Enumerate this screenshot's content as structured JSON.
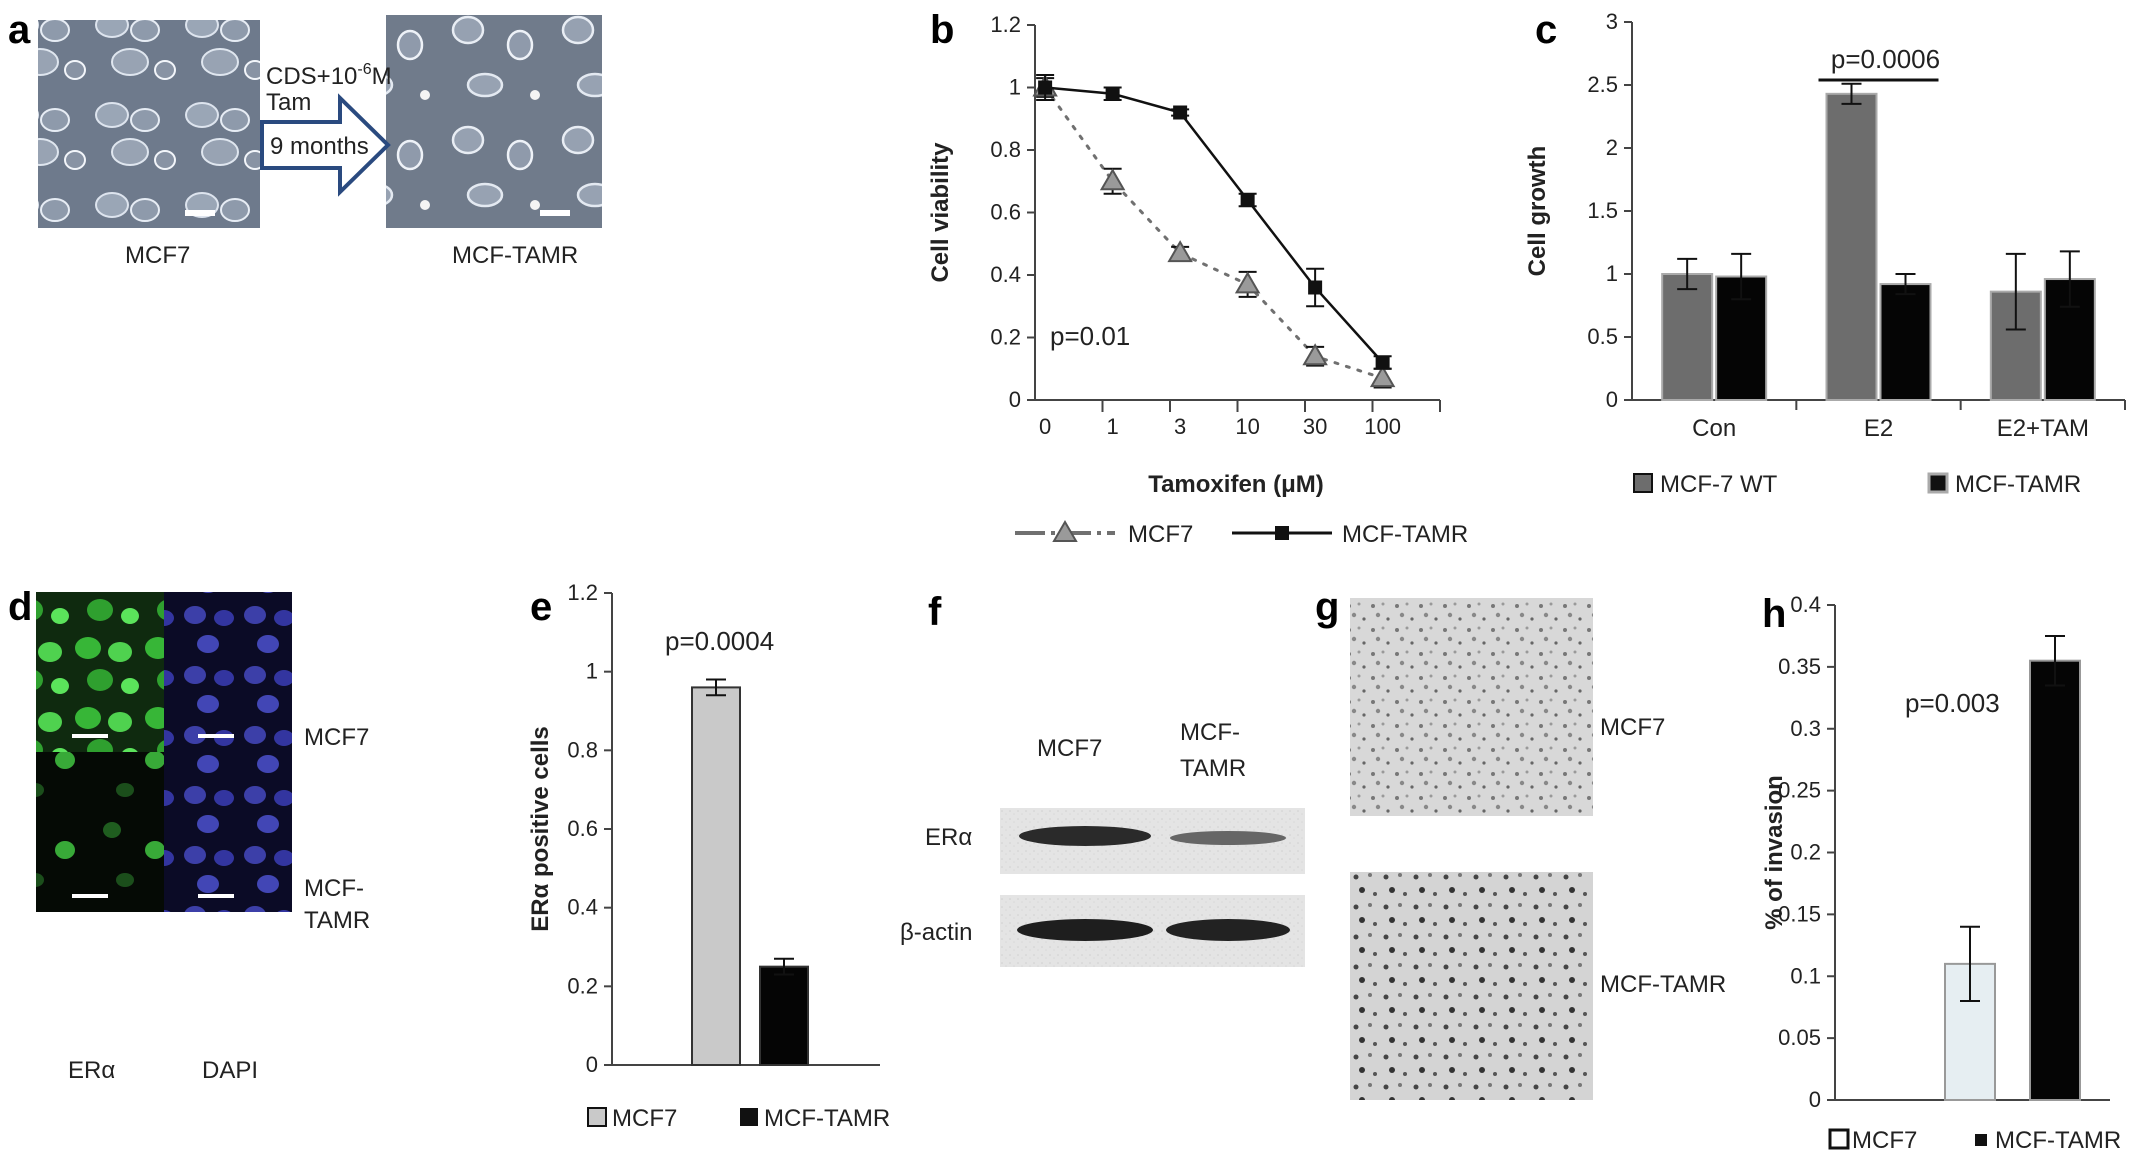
{
  "panels": {
    "a": {
      "letter": "a",
      "left_caption": "MCF7",
      "right_caption": "MCF-TAMR",
      "arrow_line1": "CDS+10",
      "arrow_sup": "-6",
      "arrow_line1_end": "M",
      "arrow_line2": "Tam",
      "arrow_line3": "9 months"
    },
    "b": {
      "letter": "b"
    },
    "c": {
      "letter": "c"
    },
    "d": {
      "letter": "d",
      "row_labels": [
        "MCF7",
        "MCF-",
        "TAMR"
      ],
      "col_labels": [
        "ERα",
        "DAPI"
      ]
    },
    "e": {
      "letter": "e"
    },
    "f": {
      "letter": "f",
      "lane_labels": [
        "MCF7",
        "MCF-",
        "TAMR"
      ],
      "row_labels": [
        "ERα",
        "β-actin"
      ]
    },
    "g": {
      "letter": "g",
      "labels": [
        "MCF7",
        "MCF-TAMR"
      ]
    },
    "h": {
      "letter": "h"
    }
  },
  "colors": {
    "mcf7_line": "#707070",
    "tamr_line": "#111111",
    "wt_bar": "#6d6d6d",
    "tamr_bar_c": "#050505",
    "e_mcf7_bar": "#c9c9c9",
    "e_tamr_bar": "#050505",
    "h_mcf7_bar": "#e6eef2",
    "h_tamr_bar": "#050505",
    "arrow_blue": "#2a4a7f"
  },
  "chart_data": [
    {
      "id": "b",
      "type": "line",
      "x_categories": [
        "0",
        "1",
        "3",
        "10",
        "30",
        "100"
      ],
      "xlabel": "Tamoxifen (μM)",
      "ylabel": "Cell viability",
      "ylim": [
        0,
        1.2
      ],
      "yticks": [
        "0",
        "0.2",
        "0.4",
        "0.6",
        "0.8",
        "1",
        "1.2"
      ],
      "annotation": "p=0.01",
      "series": [
        {
          "name": "MCF7",
          "values": [
            1.0,
            0.7,
            0.47,
            0.37,
            0.14,
            0.07
          ],
          "errors": [
            0.03,
            0.04,
            0.02,
            0.04,
            0.03,
            0.03
          ],
          "style": "dotted-triangle"
        },
        {
          "name": "MCF-TAMR",
          "values": [
            1.0,
            0.98,
            0.92,
            0.64,
            0.36,
            0.12
          ],
          "errors": [
            0.04,
            0.02,
            0.01,
            0.02,
            0.06,
            0.02
          ],
          "style": "solid-square"
        }
      ],
      "legend": [
        "MCF7",
        "MCF-TAMR"
      ],
      "legend_position": "bottom"
    },
    {
      "id": "c",
      "type": "bar",
      "categories": [
        "Con",
        "E2",
        "E2+TAM"
      ],
      "ylabel": "Cell growth",
      "ylim": [
        0,
        3
      ],
      "yticks": [
        "0",
        "0.5",
        "1",
        "1.5",
        "2",
        "2.5",
        "3"
      ],
      "annotation": "p=0.0006",
      "series": [
        {
          "name": "MCF-7 WT",
          "values": [
            1.0,
            2.43,
            0.86
          ],
          "errors": [
            0.12,
            0.08,
            0.3
          ]
        },
        {
          "name": "MCF-TAMR",
          "values": [
            0.98,
            0.92,
            0.96
          ],
          "errors": [
            0.18,
            0.08,
            0.22
          ]
        }
      ],
      "legend": [
        "MCF-7 WT",
        "MCF-TAMR"
      ],
      "legend_position": "bottom"
    },
    {
      "id": "e",
      "type": "bar",
      "categories": [
        "MCF7",
        "MCF-TAMR"
      ],
      "ylabel": "ERα positive cells",
      "ylim": [
        0,
        1.2
      ],
      "yticks": [
        "0",
        "0.2",
        "0.4",
        "0.6",
        "0.8",
        "1",
        "1.2"
      ],
      "annotation": "p=0.0004",
      "values": [
        0.96,
        0.25
      ],
      "errors": [
        0.02,
        0.02
      ],
      "legend": [
        "MCF7",
        "MCF-TAMR"
      ],
      "legend_position": "bottom"
    },
    {
      "id": "h",
      "type": "bar",
      "categories": [
        "MCF7",
        "MCF-TAMR"
      ],
      "ylabel": "% of invasion",
      "ylim": [
        0,
        0.4
      ],
      "yticks": [
        "0",
        "0.05",
        "0.1",
        "0.15",
        "0.2",
        "0.25",
        "0.3",
        "0.35",
        "0.4"
      ],
      "annotation": "p=0.003",
      "values": [
        0.11,
        0.355
      ],
      "errors": [
        0.03,
        0.02
      ],
      "legend": [
        "MCF7",
        "MCF-TAMR"
      ],
      "legend_position": "bottom"
    }
  ]
}
